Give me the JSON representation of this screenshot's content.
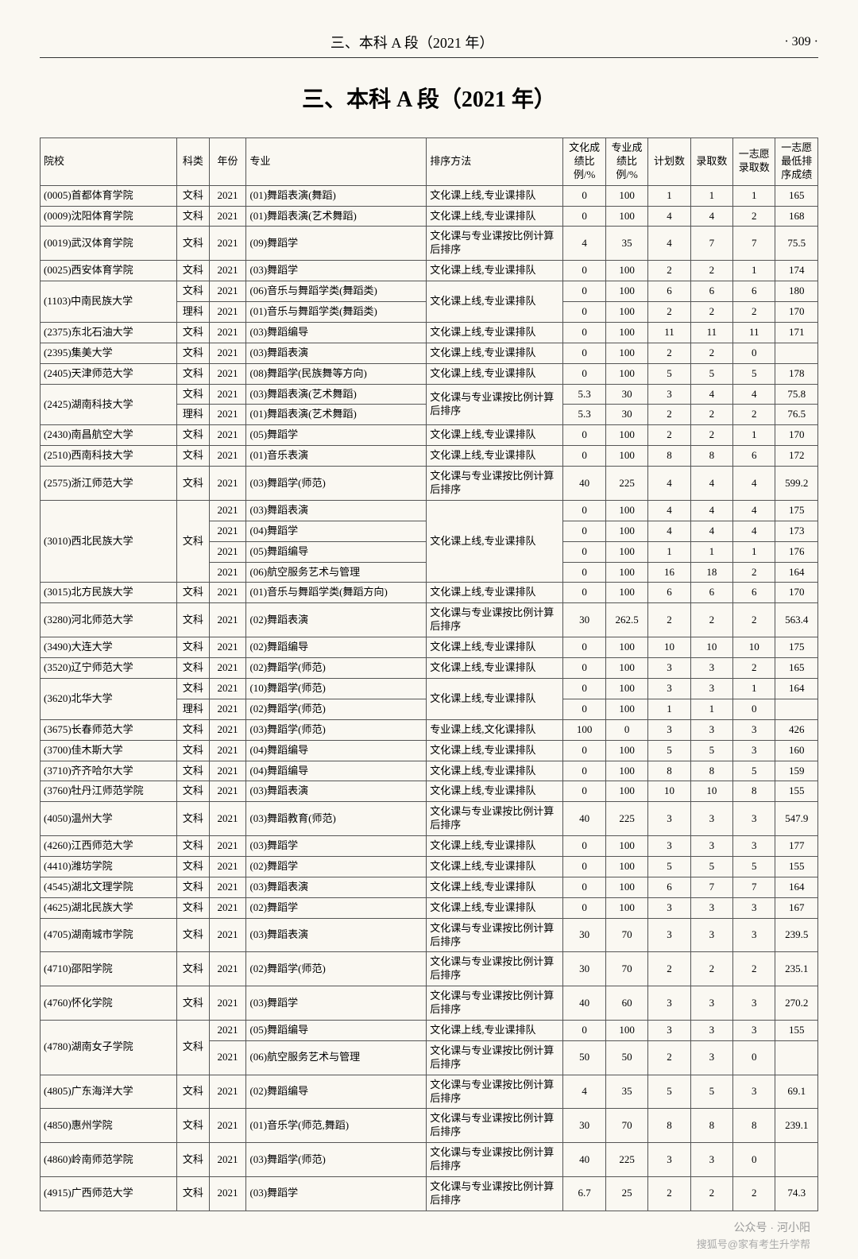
{
  "header": {
    "title": "三、本科 A 段（2021 年）",
    "page": "· 309 ·"
  },
  "main_title": "三、本科 A 段（2021 年）",
  "columns": [
    "院校",
    "科类",
    "年份",
    "专业",
    "排序方法",
    "文化成绩比例/%",
    "专业成绩比例/%",
    "计划数",
    "录取数",
    "一志愿录取数",
    "一志愿最低排序成绩"
  ],
  "rows": [
    {
      "school": "(0005)首都体育学院",
      "ke": "文科",
      "year": "2021",
      "major": "(01)舞蹈表演(舞蹈)",
      "sort": "文化课上线,专业课排队",
      "c1": "0",
      "c2": "100",
      "c3": "1",
      "c4": "1",
      "c5": "1",
      "c6": "165"
    },
    {
      "school": "(0009)沈阳体育学院",
      "ke": "文科",
      "year": "2021",
      "major": "(01)舞蹈表演(艺术舞蹈)",
      "sort": "文化课上线,专业课排队",
      "c1": "0",
      "c2": "100",
      "c3": "4",
      "c4": "4",
      "c5": "2",
      "c6": "168"
    },
    {
      "school": "(0019)武汉体育学院",
      "ke": "文科",
      "year": "2021",
      "major": "(09)舞蹈学",
      "sort": "文化课与专业课按比例计算后排序",
      "c1": "4",
      "c2": "35",
      "c3": "4",
      "c4": "7",
      "c5": "7",
      "c6": "75.5"
    },
    {
      "school": "(0025)西安体育学院",
      "ke": "文科",
      "year": "2021",
      "major": "(03)舞蹈学",
      "sort": "文化课上线,专业课排队",
      "c1": "0",
      "c2": "100",
      "c3": "2",
      "c4": "2",
      "c5": "1",
      "c6": "174"
    },
    {
      "school": "(1103)中南民族大学",
      "rowspan": 2,
      "ke": "文科",
      "year": "2021",
      "major": "(06)音乐与舞蹈学类(舞蹈类)",
      "sort": "文化课上线,专业课排队",
      "sortrowspan": 2,
      "c1": "0",
      "c2": "100",
      "c3": "6",
      "c4": "6",
      "c5": "6",
      "c6": "180"
    },
    {
      "ke": "理科",
      "year": "2021",
      "major": "(01)音乐与舞蹈学类(舞蹈类)",
      "c1": "0",
      "c2": "100",
      "c3": "2",
      "c4": "2",
      "c5": "2",
      "c6": "170"
    },
    {
      "school": "(2375)东北石油大学",
      "ke": "文科",
      "year": "2021",
      "major": "(03)舞蹈编导",
      "sort": "文化课上线,专业课排队",
      "c1": "0",
      "c2": "100",
      "c3": "11",
      "c4": "11",
      "c5": "11",
      "c6": "171"
    },
    {
      "school": "(2395)集美大学",
      "ke": "文科",
      "year": "2021",
      "major": "(03)舞蹈表演",
      "sort": "文化课上线,专业课排队",
      "c1": "0",
      "c2": "100",
      "c3": "2",
      "c4": "2",
      "c5": "0",
      "c6": ""
    },
    {
      "school": "(2405)天津师范大学",
      "ke": "文科",
      "year": "2021",
      "major": "(08)舞蹈学(民族舞等方向)",
      "sort": "文化课上线,专业课排队",
      "c1": "0",
      "c2": "100",
      "c3": "5",
      "c4": "5",
      "c5": "5",
      "c6": "178"
    },
    {
      "school": "(2425)湖南科技大学",
      "rowspan": 2,
      "ke": "文科",
      "year": "2021",
      "major": "(03)舞蹈表演(艺术舞蹈)",
      "sort": "文化课与专业课按比例计算后排序",
      "sortrowspan": 2,
      "c1": "5.3",
      "c2": "30",
      "c3": "3",
      "c4": "4",
      "c5": "4",
      "c6": "75.8"
    },
    {
      "ke": "理科",
      "year": "2021",
      "major": "(01)舞蹈表演(艺术舞蹈)",
      "c1": "5.3",
      "c2": "30",
      "c3": "2",
      "c4": "2",
      "c5": "2",
      "c6": "76.5"
    },
    {
      "school": "(2430)南昌航空大学",
      "ke": "文科",
      "year": "2021",
      "major": "(05)舞蹈学",
      "sort": "文化课上线,专业课排队",
      "c1": "0",
      "c2": "100",
      "c3": "2",
      "c4": "2",
      "c5": "1",
      "c6": "170"
    },
    {
      "school": "(2510)西南科技大学",
      "ke": "文科",
      "year": "2021",
      "major": "(01)音乐表演",
      "sort": "文化课上线,专业课排队",
      "c1": "0",
      "c2": "100",
      "c3": "8",
      "c4": "8",
      "c5": "6",
      "c6": "172"
    },
    {
      "school": "(2575)浙江师范大学",
      "ke": "文科",
      "year": "2021",
      "major": "(03)舞蹈学(师范)",
      "sort": "文化课与专业课按比例计算后排序",
      "c1": "40",
      "c2": "225",
      "c3": "4",
      "c4": "4",
      "c5": "4",
      "c6": "599.2"
    },
    {
      "school": "(3010)西北民族大学",
      "rowspan": 4,
      "ke": "文科",
      "kerowspan": 4,
      "year": "2021",
      "major": "(03)舞蹈表演",
      "sort": "文化课上线,专业课排队",
      "sortrowspan": 4,
      "c1": "0",
      "c2": "100",
      "c3": "4",
      "c4": "4",
      "c5": "4",
      "c6": "175"
    },
    {
      "year": "2021",
      "major": "(04)舞蹈学",
      "c1": "0",
      "c2": "100",
      "c3": "4",
      "c4": "4",
      "c5": "4",
      "c6": "173"
    },
    {
      "year": "2021",
      "major": "(05)舞蹈编导",
      "c1": "0",
      "c2": "100",
      "c3": "1",
      "c4": "1",
      "c5": "1",
      "c6": "176"
    },
    {
      "year": "2021",
      "major": "(06)航空服务艺术与管理",
      "c1": "0",
      "c2": "100",
      "c3": "16",
      "c4": "18",
      "c5": "2",
      "c6": "164"
    },
    {
      "school": "(3015)北方民族大学",
      "ke": "文科",
      "year": "2021",
      "major": "(01)音乐与舞蹈学类(舞蹈方向)",
      "sort": "文化课上线,专业课排队",
      "c1": "0",
      "c2": "100",
      "c3": "6",
      "c4": "6",
      "c5": "6",
      "c6": "170"
    },
    {
      "school": "(3280)河北师范大学",
      "ke": "文科",
      "year": "2021",
      "major": "(02)舞蹈表演",
      "sort": "文化课与专业课按比例计算后排序",
      "c1": "30",
      "c2": "262.5",
      "c3": "2",
      "c4": "2",
      "c5": "2",
      "c6": "563.4"
    },
    {
      "school": "(3490)大连大学",
      "ke": "文科",
      "year": "2021",
      "major": "(02)舞蹈编导",
      "sort": "文化课上线,专业课排队",
      "c1": "0",
      "c2": "100",
      "c3": "10",
      "c4": "10",
      "c5": "10",
      "c6": "175"
    },
    {
      "school": "(3520)辽宁师范大学",
      "ke": "文科",
      "year": "2021",
      "major": "(02)舞蹈学(师范)",
      "sort": "文化课上线,专业课排队",
      "c1": "0",
      "c2": "100",
      "c3": "3",
      "c4": "3",
      "c5": "2",
      "c6": "165"
    },
    {
      "school": "(3620)北华大学",
      "rowspan": 2,
      "ke": "文科",
      "year": "2021",
      "major": "(10)舞蹈学(师范)",
      "sort": "文化课上线,专业课排队",
      "sortrowspan": 2,
      "c1": "0",
      "c2": "100",
      "c3": "3",
      "c4": "3",
      "c5": "1",
      "c6": "164"
    },
    {
      "ke": "理科",
      "year": "2021",
      "major": "(02)舞蹈学(师范)",
      "c1": "0",
      "c2": "100",
      "c3": "1",
      "c4": "1",
      "c5": "0",
      "c6": ""
    },
    {
      "school": "(3675)长春师范大学",
      "ke": "文科",
      "year": "2021",
      "major": "(03)舞蹈学(师范)",
      "sort": "专业课上线,文化课排队",
      "c1": "100",
      "c2": "0",
      "c3": "3",
      "c4": "3",
      "c5": "3",
      "c6": "426"
    },
    {
      "school": "(3700)佳木斯大学",
      "ke": "文科",
      "year": "2021",
      "major": "(04)舞蹈编导",
      "sort": "文化课上线,专业课排队",
      "c1": "0",
      "c2": "100",
      "c3": "5",
      "c4": "5",
      "c5": "3",
      "c6": "160"
    },
    {
      "school": "(3710)齐齐哈尔大学",
      "ke": "文科",
      "year": "2021",
      "major": "(04)舞蹈编导",
      "sort": "文化课上线,专业课排队",
      "c1": "0",
      "c2": "100",
      "c3": "8",
      "c4": "8",
      "c5": "5",
      "c6": "159"
    },
    {
      "school": "(3760)牡丹江师范学院",
      "ke": "文科",
      "year": "2021",
      "major": "(03)舞蹈表演",
      "sort": "文化课上线,专业课排队",
      "c1": "0",
      "c2": "100",
      "c3": "10",
      "c4": "10",
      "c5": "8",
      "c6": "155"
    },
    {
      "school": "(4050)温州大学",
      "ke": "文科",
      "year": "2021",
      "major": "(03)舞蹈教育(师范)",
      "sort": "文化课与专业课按比例计算后排序",
      "c1": "40",
      "c2": "225",
      "c3": "3",
      "c4": "3",
      "c5": "3",
      "c6": "547.9"
    },
    {
      "school": "(4260)江西师范大学",
      "ke": "文科",
      "year": "2021",
      "major": "(03)舞蹈学",
      "sort": "文化课上线,专业课排队",
      "c1": "0",
      "c2": "100",
      "c3": "3",
      "c4": "3",
      "c5": "3",
      "c6": "177"
    },
    {
      "school": "(4410)潍坊学院",
      "ke": "文科",
      "year": "2021",
      "major": "(02)舞蹈学",
      "sort": "文化课上线,专业课排队",
      "c1": "0",
      "c2": "100",
      "c3": "5",
      "c4": "5",
      "c5": "5",
      "c6": "155"
    },
    {
      "school": "(4545)湖北文理学院",
      "ke": "文科",
      "year": "2021",
      "major": "(03)舞蹈表演",
      "sort": "文化课上线,专业课排队",
      "c1": "0",
      "c2": "100",
      "c3": "6",
      "c4": "7",
      "c5": "7",
      "c6": "164"
    },
    {
      "school": "(4625)湖北民族大学",
      "ke": "文科",
      "year": "2021",
      "major": "(02)舞蹈学",
      "sort": "文化课上线,专业课排队",
      "c1": "0",
      "c2": "100",
      "c3": "3",
      "c4": "3",
      "c5": "3",
      "c6": "167"
    },
    {
      "school": "(4705)湖南城市学院",
      "ke": "文科",
      "year": "2021",
      "major": "(03)舞蹈表演",
      "sort": "文化课与专业课按比例计算后排序",
      "c1": "30",
      "c2": "70",
      "c3": "3",
      "c4": "3",
      "c5": "3",
      "c6": "239.5"
    },
    {
      "school": "(4710)邵阳学院",
      "ke": "文科",
      "year": "2021",
      "major": "(02)舞蹈学(师范)",
      "sort": "文化课与专业课按比例计算后排序",
      "c1": "30",
      "c2": "70",
      "c3": "2",
      "c4": "2",
      "c5": "2",
      "c6": "235.1"
    },
    {
      "school": "(4760)怀化学院",
      "ke": "文科",
      "year": "2021",
      "major": "(03)舞蹈学",
      "sort": "文化课与专业课按比例计算后排序",
      "c1": "40",
      "c2": "60",
      "c3": "3",
      "c4": "3",
      "c5": "3",
      "c6": "270.2"
    },
    {
      "school": "(4780)湖南女子学院",
      "rowspan": 2,
      "ke": "文科",
      "kerowspan": 2,
      "year": "2021",
      "major": "(05)舞蹈编导",
      "sort": "文化课上线,专业课排队",
      "c1": "0",
      "c2": "100",
      "c3": "3",
      "c4": "3",
      "c5": "3",
      "c6": "155"
    },
    {
      "year": "2021",
      "major": "(06)航空服务艺术与管理",
      "sort": "文化课与专业课按比例计算后排序",
      "c1": "50",
      "c2": "50",
      "c3": "2",
      "c4": "3",
      "c5": "0",
      "c6": ""
    },
    {
      "school": "(4805)广东海洋大学",
      "ke": "文科",
      "year": "2021",
      "major": "(02)舞蹈编导",
      "sort": "文化课与专业课按比例计算后排序",
      "c1": "4",
      "c2": "35",
      "c3": "5",
      "c4": "5",
      "c5": "3",
      "c6": "69.1"
    },
    {
      "school": "(4850)惠州学院",
      "ke": "文科",
      "year": "2021",
      "major": "(01)音乐学(师范,舞蹈)",
      "sort": "文化课与专业课按比例计算后排序",
      "c1": "30",
      "c2": "70",
      "c3": "8",
      "c4": "8",
      "c5": "8",
      "c6": "239.1"
    },
    {
      "school": "(4860)岭南师范学院",
      "ke": "文科",
      "year": "2021",
      "major": "(03)舞蹈学(师范)",
      "sort": "文化课与专业课按比例计算后排序",
      "c1": "40",
      "c2": "225",
      "c3": "3",
      "c4": "3",
      "c5": "0",
      "c6": ""
    },
    {
      "school": "(4915)广西师范大学",
      "ke": "文科",
      "year": "2021",
      "major": "(03)舞蹈学",
      "sort": "文化课与专业课按比例计算后排序",
      "c1": "6.7",
      "c2": "25",
      "c3": "2",
      "c4": "2",
      "c5": "2",
      "c6": "74.3"
    }
  ],
  "footer": {
    "wm1": "公众号 · 河小阳",
    "wm2": "搜狐号@家有考生升学帮"
  }
}
